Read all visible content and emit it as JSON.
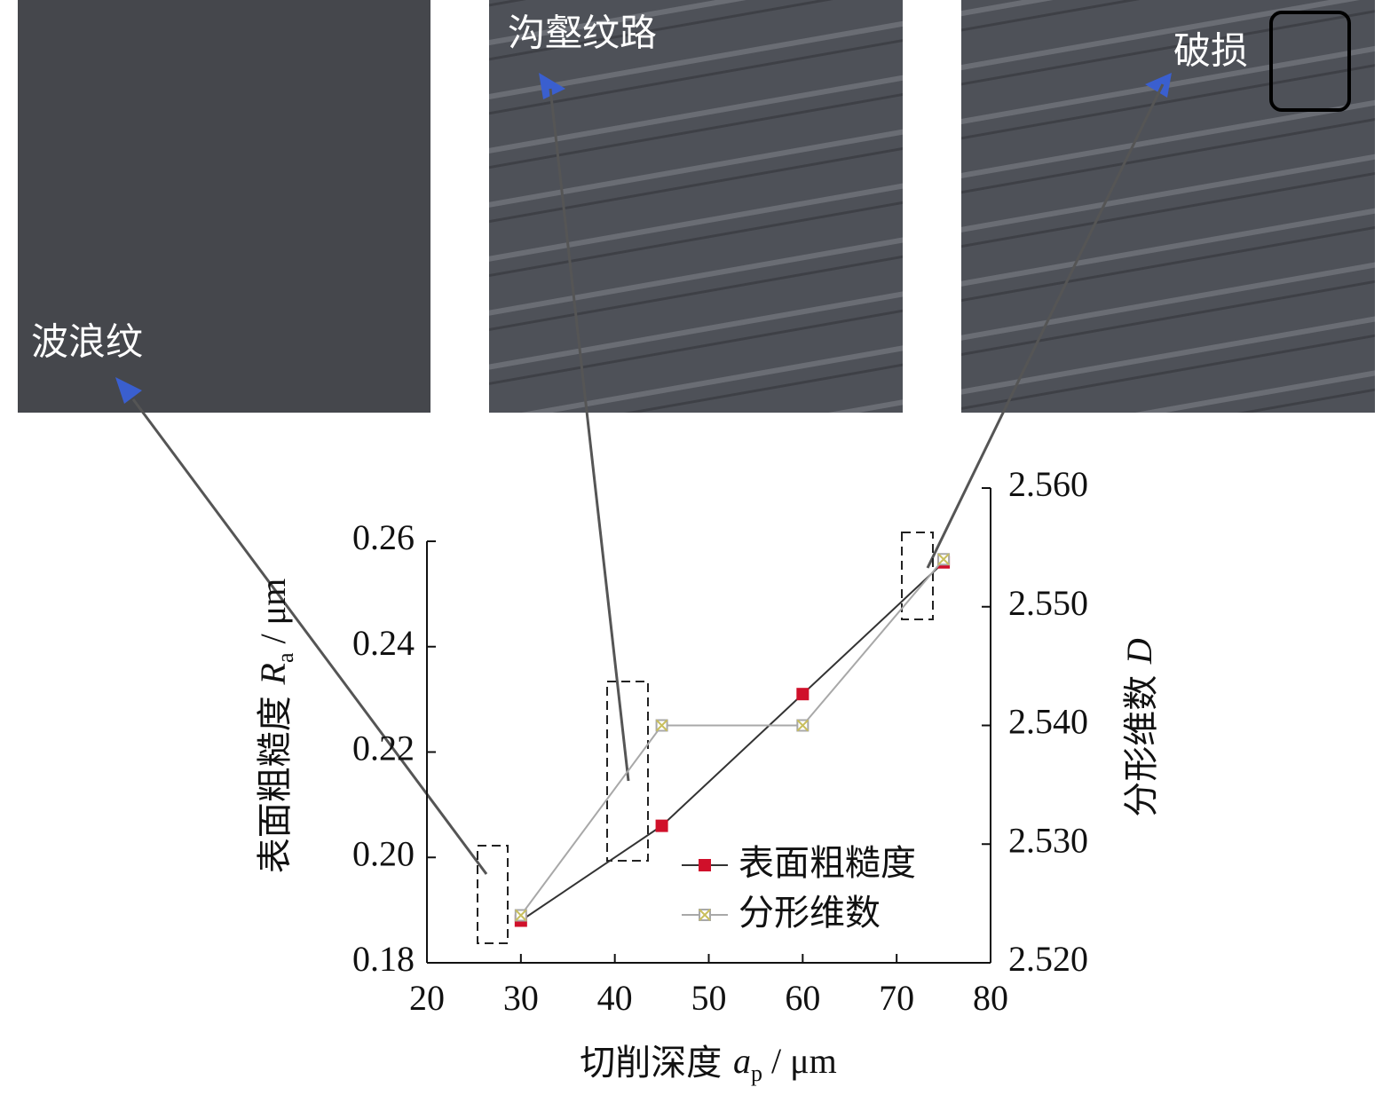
{
  "chart_data": {
    "type": "line",
    "annotations": [
      "波浪纹",
      "沟壑纹路",
      "破损"
    ],
    "xlabel_parts": [
      "切削深度 ",
      "a",
      "p",
      " / μm"
    ],
    "ylabel_parts": [
      "表面粗糙度 ",
      "R",
      "a",
      " / μm"
    ],
    "y2label_parts": [
      "分形维数 ",
      "D"
    ],
    "x": [
      30,
      45,
      60,
      75
    ],
    "series": [
      {
        "name": "表面粗糙度",
        "color": "#d0102a",
        "marker": "square",
        "values": [
          0.188,
          0.206,
          0.231,
          0.256
        ]
      },
      {
        "name": "分形维数",
        "color": "#a8a8a8",
        "marker": "crossbox",
        "axis": "y2",
        "values": [
          2.524,
          2.54,
          2.54,
          2.554
        ]
      }
    ],
    "xlim": [
      20,
      80
    ],
    "xticks": [
      20,
      30,
      40,
      50,
      60,
      70,
      80
    ],
    "ylim": [
      0.18,
      0.26
    ],
    "yticks": [
      0.18,
      {
        "value": 0.2,
        "label": "0.20"
      },
      0.22,
      0.24,
      0.26
    ],
    "y2lim": [
      2.52,
      2.56
    ],
    "y2ticks": [
      {
        "value": 2.52,
        "label": "2.520"
      },
      {
        "value": 2.53,
        "label": "2.530"
      },
      {
        "value": 2.54,
        "label": "2.540"
      },
      {
        "value": 2.55,
        "label": "2.550"
      },
      {
        "value": 2.56,
        "label": "2.560"
      }
    ],
    "legend": "lower right",
    "grid": false
  }
}
